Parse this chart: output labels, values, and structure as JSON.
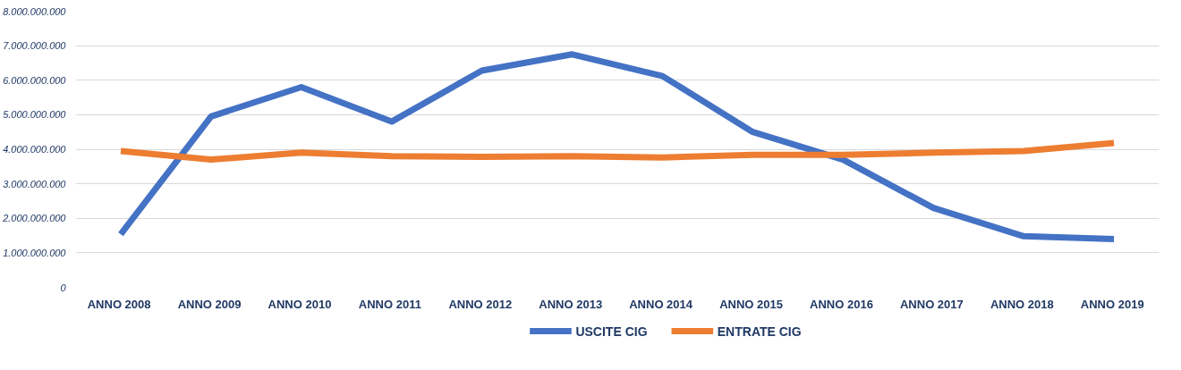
{
  "chart_data": {
    "type": "line",
    "categories": [
      "ANNO  2008",
      "ANNO  2009",
      "ANNO  2010",
      "ANNO  2011",
      "ANNO  2012",
      "ANNO  2013",
      "ANNO  2014",
      "ANNO  2015",
      "ANNO  2016",
      "ANNO  2017",
      "ANNO  2018",
      "ANNO  2019"
    ],
    "series": [
      {
        "name": "USCITE CIG",
        "color": "#4472c4",
        "values": [
          1540000000,
          4950000000,
          5800000000,
          4800000000,
          6280000000,
          6750000000,
          6120000000,
          4500000000,
          3700000000,
          2300000000,
          1480000000,
          1400000000
        ]
      },
      {
        "name": "ENTRATE CIG",
        "color": "#ed7d31",
        "values": [
          3950000000,
          3700000000,
          3900000000,
          3800000000,
          3780000000,
          3800000000,
          3760000000,
          3840000000,
          3840000000,
          3900000000,
          3950000000,
          4180000000
        ]
      }
    ],
    "ylim": [
      0,
      8000000000
    ],
    "yticks": [
      {
        "value": 0,
        "label": "0"
      },
      {
        "value": 1000000000,
        "label": "1.000.000.000"
      },
      {
        "value": 2000000000,
        "label": "2.000.000.000"
      },
      {
        "value": 3000000000,
        "label": "3.000.000.000"
      },
      {
        "value": 4000000000,
        "label": "4.000.000.000"
      },
      {
        "value": 5000000000,
        "label": "5.000.000.000"
      },
      {
        "value": 6000000000,
        "label": "6.000.000.000"
      },
      {
        "value": 7000000000,
        "label": "7.000.000.000"
      },
      {
        "value": 8000000000,
        "label": "8.000.000.000"
      }
    ],
    "grid": "y",
    "legend": "bottom",
    "line_style": "solid",
    "marker": "none"
  }
}
